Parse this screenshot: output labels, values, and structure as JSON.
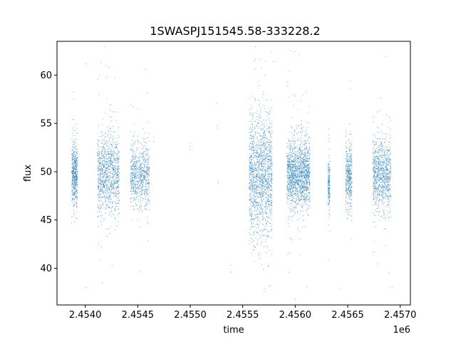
{
  "chart_data": {
    "type": "scatter",
    "title": "1SWASPJ151545.58-333228.2",
    "xlabel": "time",
    "ylabel": "flux",
    "x_offset_label": "1e6",
    "xlim": [
      2453730,
      2457096
    ],
    "ylim": [
      36.2,
      63.5
    ],
    "x_ticks": [
      2453999,
      2454499,
      2454999,
      2455499,
      2455999,
      2456499,
      2456999
    ],
    "x_tick_labels": [
      "2.4540",
      "2.4545",
      "2.4550",
      "2.4555",
      "2.4560",
      "2.4565",
      "2.4570"
    ],
    "y_ticks": [
      40,
      45,
      50,
      55,
      60
    ],
    "y_tick_labels": [
      "40",
      "45",
      "50",
      "55",
      "60"
    ],
    "grid": false,
    "marker_color": "#1f77b4",
    "clusters": [
      {
        "x_start": 2453870,
        "x_end": 2453925,
        "center": 49.8,
        "spread": 1.6,
        "density": 550
      },
      {
        "x_start": 2454115,
        "x_end": 2454325,
        "center": 49.7,
        "spread": 2.1,
        "density": 1150
      },
      {
        "x_start": 2454430,
        "x_end": 2454610,
        "center": 49.6,
        "spread": 1.7,
        "density": 800
      },
      {
        "x_start": 2455560,
        "x_end": 2455780,
        "center": 49.6,
        "spread": 3.2,
        "density": 1700
      },
      {
        "x_start": 2455920,
        "x_end": 2456140,
        "center": 49.8,
        "spread": 1.8,
        "density": 1700
      },
      {
        "x_start": 2456310,
        "x_end": 2456330,
        "center": 48.8,
        "spread": 1.4,
        "density": 180
      },
      {
        "x_start": 2456480,
        "x_end": 2456540,
        "center": 49.8,
        "spread": 1.7,
        "density": 450
      },
      {
        "x_start": 2456740,
        "x_end": 2456910,
        "center": 49.8,
        "spread": 1.9,
        "density": 1000
      }
    ],
    "sparse_points": [
      {
        "x": 2454652,
        "y": 53.6
      },
      {
        "x": 2454652,
        "y": 53.1
      },
      {
        "x": 2454998,
        "y": 53.0
      },
      {
        "x": 2454998,
        "y": 52.6
      },
      {
        "x": 2455000,
        "y": 52.3
      },
      {
        "x": 2455250,
        "y": 57.1
      },
      {
        "x": 2455255,
        "y": 54.8
      },
      {
        "x": 2455252,
        "y": 54.5
      },
      {
        "x": 2455262,
        "y": 49.0
      },
      {
        "x": 2455265,
        "y": 48.8
      },
      {
        "x": 2455385,
        "y": 40.3
      },
      {
        "x": 2455390,
        "y": 39.6
      },
      {
        "x": 2454195,
        "y": 61.0
      },
      {
        "x": 2454222,
        "y": 60.8
      },
      {
        "x": 2454005,
        "y": 61.2
      },
      {
        "x": 2454575,
        "y": 60.6
      },
      {
        "x": 2455795,
        "y": 61.4
      },
      {
        "x": 2456035,
        "y": 62.1
      },
      {
        "x": 2456860,
        "y": 61.9
      },
      {
        "x": 2456430,
        "y": 37.8
      },
      {
        "x": 2455705,
        "y": 37.9
      },
      {
        "x": 2456920,
        "y": 38.0
      },
      {
        "x": 2454160,
        "y": 38.5
      },
      {
        "x": 2454005,
        "y": 38.0
      }
    ]
  }
}
